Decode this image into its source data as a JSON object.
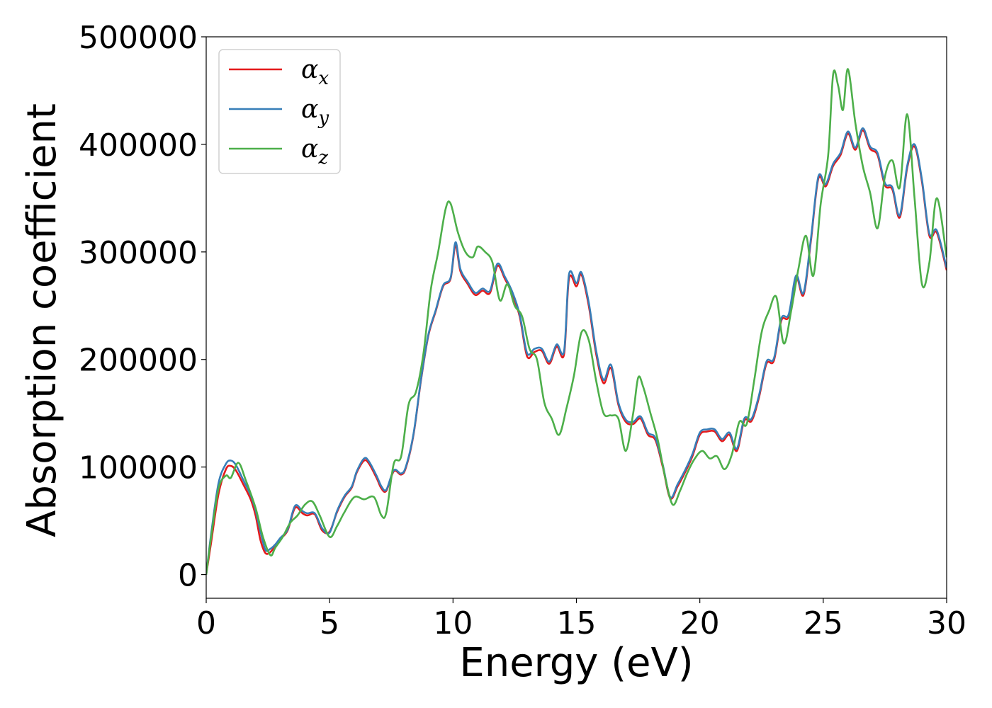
{
  "chart_data": {
    "type": "line",
    "xlabel": "Energy (eV)",
    "ylabel": "Absorption coefficient",
    "xlim": [
      0,
      30
    ],
    "ylim": [
      -22000,
      500000
    ],
    "xticks": [
      "0",
      "5",
      "10",
      "15",
      "20",
      "25",
      "30"
    ],
    "yticks": [
      "0",
      "100000",
      "200000",
      "300000",
      "400000",
      "500000"
    ],
    "grid": false,
    "legend_position": "top-left",
    "series": [
      {
        "name": "α",
        "subscript": "x",
        "color": "#e41a1c",
        "x": [
          0,
          0.2,
          0.5,
          0.8,
          1.0,
          1.2,
          1.5,
          1.8,
          2.0,
          2.2,
          2.4,
          2.6,
          2.8,
          3.0,
          3.3,
          3.6,
          3.9,
          4.1,
          4.4,
          4.7,
          5.0,
          5.3,
          5.6,
          5.9,
          6.1,
          6.4,
          6.6,
          6.9,
          7.1,
          7.3,
          7.6,
          7.9,
          8.1,
          8.4,
          8.7,
          9.0,
          9.3,
          9.6,
          9.9,
          10.1,
          10.3,
          10.6,
          10.9,
          11.2,
          11.5,
          11.8,
          12.1,
          12.4,
          12.7,
          13.0,
          13.3,
          13.6,
          13.9,
          14.2,
          14.5,
          14.7,
          15.0,
          15.2,
          15.5,
          15.8,
          16.1,
          16.4,
          16.7,
          17.0,
          17.3,
          17.6,
          17.9,
          18.2,
          18.5,
          18.8,
          19.1,
          19.4,
          19.7,
          20.0,
          20.3,
          20.6,
          20.9,
          21.2,
          21.5,
          21.8,
          22.1,
          22.4,
          22.7,
          23.0,
          23.3,
          23.6,
          23.9,
          24.2,
          24.5,
          24.8,
          25.1,
          25.4,
          25.7,
          26.0,
          26.3,
          26.6,
          26.9,
          27.2,
          27.5,
          27.8,
          28.1,
          28.4,
          28.7,
          29.0,
          29.3,
          29.6,
          30.0
        ],
        "values": [
          0,
          30000,
          75000,
          98000,
          101000,
          97000,
          84000,
          70000,
          55000,
          32000,
          20000,
          21000,
          27000,
          33000,
          41000,
          62000,
          57000,
          55000,
          56000,
          41000,
          40000,
          58000,
          72000,
          81000,
          95000,
          106000,
          103000,
          90000,
          80000,
          78000,
          96000,
          93000,
          100000,
          130000,
          180000,
          222000,
          245000,
          268000,
          275000,
          306000,
          282000,
          270000,
          260000,
          264000,
          262000,
          287000,
          275000,
          261000,
          240000,
          203000,
          207000,
          208000,
          196000,
          212000,
          205000,
          275000,
          268000,
          279000,
          250000,
          205000,
          178000,
          192000,
          158000,
          142000,
          140000,
          145000,
          130000,
          125000,
          100000,
          71000,
          82000,
          95000,
          110000,
          130000,
          133000,
          133000,
          124000,
          130000,
          115000,
          143000,
          143000,
          165000,
          196000,
          199000,
          236000,
          240000,
          276000,
          260000,
          310000,
          368000,
          361000,
          380000,
          390000,
          410000,
          395000,
          413000,
          396000,
          390000,
          362000,
          358000,
          332000,
          378000,
          398000,
          365000,
          315000,
          318000,
          283000
        ]
      },
      {
        "name": "α",
        "subscript": "y",
        "color": "#377eb8",
        "x": [
          0,
          0.2,
          0.5,
          0.8,
          1.0,
          1.2,
          1.5,
          1.8,
          2.0,
          2.2,
          2.4,
          2.6,
          2.8,
          3.0,
          3.3,
          3.6,
          3.9,
          4.1,
          4.4,
          4.7,
          5.0,
          5.3,
          5.6,
          5.9,
          6.1,
          6.4,
          6.6,
          6.9,
          7.1,
          7.3,
          7.6,
          7.9,
          8.1,
          8.4,
          8.7,
          9.0,
          9.3,
          9.6,
          9.9,
          10.1,
          10.3,
          10.6,
          10.9,
          11.2,
          11.5,
          11.8,
          12.1,
          12.4,
          12.7,
          13.0,
          13.3,
          13.6,
          13.9,
          14.2,
          14.5,
          14.7,
          15.0,
          15.2,
          15.5,
          15.8,
          16.1,
          16.4,
          16.7,
          17.0,
          17.3,
          17.6,
          17.9,
          18.2,
          18.5,
          18.8,
          19.1,
          19.4,
          19.7,
          20.0,
          20.3,
          20.6,
          20.9,
          21.2,
          21.5,
          21.8,
          22.1,
          22.4,
          22.7,
          23.0,
          23.3,
          23.6,
          23.9,
          24.2,
          24.5,
          24.8,
          25.1,
          25.4,
          25.7,
          26.0,
          26.3,
          26.6,
          26.9,
          27.2,
          27.5,
          27.8,
          28.1,
          28.4,
          28.7,
          29.0,
          29.3,
          29.6,
          30.0
        ],
        "values": [
          0,
          38000,
          85000,
          103000,
          106000,
          102000,
          88000,
          74000,
          60000,
          40000,
          23000,
          24000,
          28000,
          34000,
          42000,
          64000,
          59000,
          57000,
          57000,
          43000,
          39000,
          59000,
          73000,
          82000,
          96000,
          108000,
          105000,
          92000,
          82000,
          79000,
          97000,
          94000,
          101000,
          131000,
          181000,
          223000,
          246000,
          269000,
          276000,
          309000,
          284000,
          272000,
          262000,
          266000,
          264000,
          289000,
          277000,
          263000,
          242000,
          206000,
          210000,
          210000,
          198000,
          214000,
          208000,
          279000,
          271000,
          281000,
          253000,
          208000,
          181000,
          195000,
          160000,
          144000,
          142000,
          147000,
          132000,
          127000,
          102000,
          72000,
          84000,
          97000,
          112000,
          132000,
          135000,
          135000,
          126000,
          132000,
          117000,
          145000,
          145000,
          167000,
          198000,
          201000,
          238000,
          242000,
          278000,
          262000,
          312000,
          370000,
          363000,
          382000,
          392000,
          412000,
          397000,
          415000,
          398000,
          392000,
          364000,
          360000,
          334000,
          380000,
          400000,
          367000,
          317000,
          320000,
          285000
        ]
      },
      {
        "name": "α",
        "subscript": "z",
        "color": "#4daf4a",
        "x": [
          0,
          0.2,
          0.5,
          0.8,
          1.0,
          1.3,
          1.6,
          2.0,
          2.3,
          2.6,
          2.8,
          3.1,
          3.4,
          3.7,
          4.0,
          4.3,
          4.6,
          5.0,
          5.3,
          5.6,
          6.0,
          6.4,
          6.8,
          7.1,
          7.3,
          7.6,
          7.9,
          8.2,
          8.5,
          8.8,
          9.1,
          9.4,
          9.7,
          9.9,
          10.2,
          10.5,
          10.8,
          11.0,
          11.3,
          11.6,
          11.9,
          12.2,
          12.5,
          12.8,
          13.1,
          13.4,
          13.7,
          14.0,
          14.3,
          14.6,
          14.9,
          15.2,
          15.5,
          15.8,
          16.1,
          16.4,
          16.7,
          17.0,
          17.3,
          17.5,
          17.7,
          18.0,
          18.3,
          18.6,
          18.9,
          19.2,
          19.5,
          19.8,
          20.1,
          20.4,
          20.7,
          21.0,
          21.3,
          21.6,
          21.9,
          22.2,
          22.5,
          22.8,
          23.1,
          23.4,
          23.7,
          24.0,
          24.3,
          24.6,
          24.9,
          25.2,
          25.4,
          25.6,
          25.8,
          26.0,
          26.3,
          26.6,
          26.9,
          27.2,
          27.5,
          27.8,
          28.1,
          28.4,
          28.7,
          29.0,
          29.3,
          29.6,
          30.0
        ],
        "values": [
          0,
          35000,
          80000,
          92000,
          90000,
          104000,
          88000,
          62000,
          35000,
          18000,
          25000,
          35000,
          48000,
          55000,
          65000,
          68000,
          55000,
          35000,
          45000,
          58000,
          72000,
          70000,
          72000,
          55000,
          58000,
          103000,
          110000,
          158000,
          170000,
          205000,
          265000,
          300000,
          340000,
          345000,
          318000,
          300000,
          295000,
          305000,
          300000,
          290000,
          255000,
          270000,
          250000,
          240000,
          210000,
          200000,
          160000,
          145000,
          130000,
          155000,
          185000,
          225000,
          218000,
          180000,
          150000,
          148000,
          145000,
          115000,
          150000,
          183000,
          175000,
          150000,
          125000,
          90000,
          65000,
          78000,
          95000,
          108000,
          115000,
          108000,
          110000,
          98000,
          112000,
          142000,
          140000,
          180000,
          225000,
          245000,
          258000,
          215000,
          245000,
          285000,
          315000,
          278000,
          345000,
          390000,
          465000,
          455000,
          432000,
          470000,
          420000,
          380000,
          355000,
          322000,
          370000,
          385000,
          360000,
          428000,
          350000,
          270000,
          290000,
          350000,
          295000
        ]
      }
    ]
  }
}
